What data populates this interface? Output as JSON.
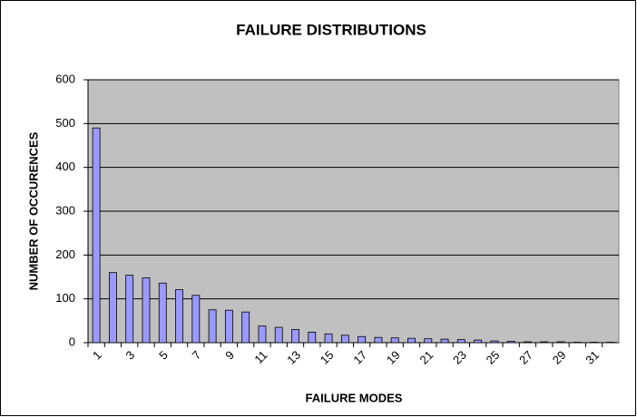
{
  "chart_data": {
    "type": "bar",
    "title": "FAILURE DISTRIBUTIONS",
    "x_label": "FAILURE MODES",
    "y_label": "NUMBER OF OCCURENCES",
    "categories": [
      1,
      null,
      3,
      null,
      5,
      null,
      7,
      null,
      9,
      null,
      11,
      null,
      13,
      null,
      15,
      null,
      17,
      null,
      19,
      null,
      21,
      null,
      23,
      null,
      25,
      null,
      27,
      null,
      29,
      null,
      31,
      null
    ],
    "values": [
      490,
      160,
      154,
      148,
      136,
      121,
      108,
      75,
      74,
      70,
      38,
      35,
      30,
      24,
      20,
      17,
      14,
      12,
      11,
      10,
      9,
      8,
      7,
      6,
      4,
      3,
      2,
      2,
      2,
      1,
      1,
      1
    ],
    "color": "#9999ff",
    "ylim": [
      0,
      600
    ],
    "yticks": [
      0,
      100,
      200,
      300,
      400,
      500,
      600
    ],
    "grid": true
  }
}
